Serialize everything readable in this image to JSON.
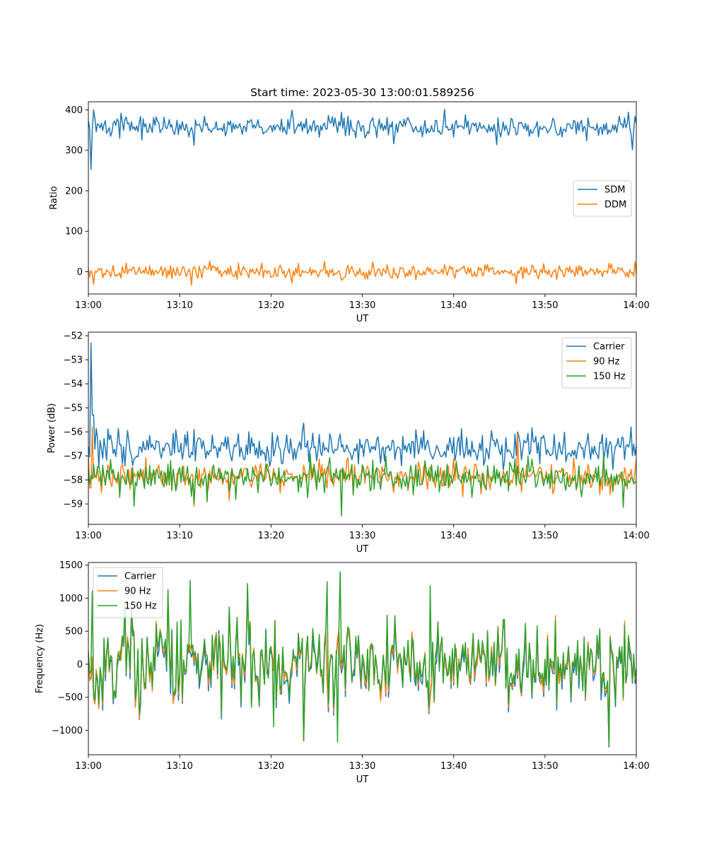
{
  "chart_data": [
    {
      "type": "line",
      "title": "Start time: 2023-05-30 13:00:01.589256",
      "xlabel": "UT",
      "ylabel": "Ratio",
      "xlim": [
        "13:00",
        "14:00"
      ],
      "ylim": [
        -55,
        420
      ],
      "x_ticks": [
        "13:00",
        "13:10",
        "13:20",
        "13:30",
        "13:40",
        "13:50",
        "14:00"
      ],
      "y_ticks": [
        0,
        100,
        200,
        300,
        400
      ],
      "legend": "center-right",
      "grid": false,
      "series": [
        {
          "name": "SDM",
          "color": "#1f77b4",
          "mean": 357,
          "noise": 14,
          "start": 372,
          "spikes": [
            [
              0.3,
              252
            ],
            [
              0.6,
              400
            ],
            [
              22.3,
              399
            ],
            [
              33.4,
              316
            ],
            [
              27.7,
              394
            ]
          ]
        },
        {
          "name": "DDM",
          "color": "#ff7f0e",
          "mean": 0,
          "noise": 9,
          "start": 8,
          "spikes": [
            [
              0.6,
              -32
            ],
            [
              11.3,
              -33
            ],
            [
              22.3,
              -28
            ],
            [
              46.8,
              -30
            ],
            [
              59.9,
              25
            ]
          ]
        }
      ]
    },
    {
      "type": "line",
      "title": "",
      "xlabel": "UT",
      "ylabel": "Power (dB)",
      "xlim": [
        "13:00",
        "14:00"
      ],
      "ylim": [
        -59.85,
        -51.85
      ],
      "x_ticks": [
        "13:00",
        "13:10",
        "13:20",
        "13:30",
        "13:40",
        "13:50",
        "14:00"
      ],
      "y_ticks": [
        -52,
        -53,
        -54,
        -55,
        -56,
        -57,
        -58,
        -59
      ],
      "legend": "top-right",
      "grid": false,
      "series": [
        {
          "name": "Carrier",
          "color": "#1f77b4",
          "mean": -56.7,
          "noise": 0.35,
          "start": -56.6,
          "spikes": [
            [
              0.35,
              -52.3
            ],
            [
              0.5,
              -55.3
            ],
            [
              11.6,
              -55.9
            ],
            [
              47.0,
              -56.0
            ],
            [
              59.4,
              -55.8
            ]
          ]
        },
        {
          "name": "90 Hz",
          "color": "#ff7f0e",
          "mean": -57.85,
          "noise": 0.3,
          "start": -57.0,
          "spikes": [
            [
              0.45,
              -55.8
            ],
            [
              11.6,
              -59.1
            ],
            [
              41.0,
              -58.7
            ],
            [
              47.0,
              -56.1
            ],
            [
              56.0,
              -58.6
            ]
          ]
        },
        {
          "name": "150 Hz",
          "color": "#2ca02c",
          "mean": -57.9,
          "noise": 0.32,
          "start": -57.5,
          "spikes": [
            [
              5.0,
              -59.1
            ],
            [
              27.7,
              -59.5
            ],
            [
              11.6,
              -59.0
            ],
            [
              54.0,
              -58.7
            ]
          ]
        }
      ]
    },
    {
      "type": "line",
      "title": "",
      "xlabel": "UT",
      "ylabel": "Frequency (Hz)",
      "xlim": [
        "13:00",
        "14:00"
      ],
      "ylim": [
        -1370,
        1540
      ],
      "x_ticks": [
        "13:00",
        "13:10",
        "13:20",
        "13:30",
        "13:40",
        "13:50",
        "14:00"
      ],
      "y_ticks": [
        1500,
        1000,
        500,
        0,
        -500,
        -1000
      ],
      "legend": "top-left",
      "grid": false,
      "series": [
        {
          "name": "Carrier",
          "color": "#1f77b4",
          "mean": -40,
          "noise": 330,
          "start": 150
        },
        {
          "name": "90 Hz",
          "color": "#ff7f0e",
          "mean": 0,
          "noise": 330,
          "start": 180
        },
        {
          "name": "150 Hz",
          "color": "#2ca02c",
          "mean": 30,
          "noise": 330,
          "start": 200,
          "spikes": [
            [
              0.4,
              1110
            ],
            [
              11.1,
              1270
            ],
            [
              26.1,
              1250
            ],
            [
              27.6,
              1400
            ],
            [
              37.4,
              1190
            ],
            [
              20.3,
              -950
            ],
            [
              27.3,
              -1180
            ]
          ]
        }
      ]
    }
  ]
}
